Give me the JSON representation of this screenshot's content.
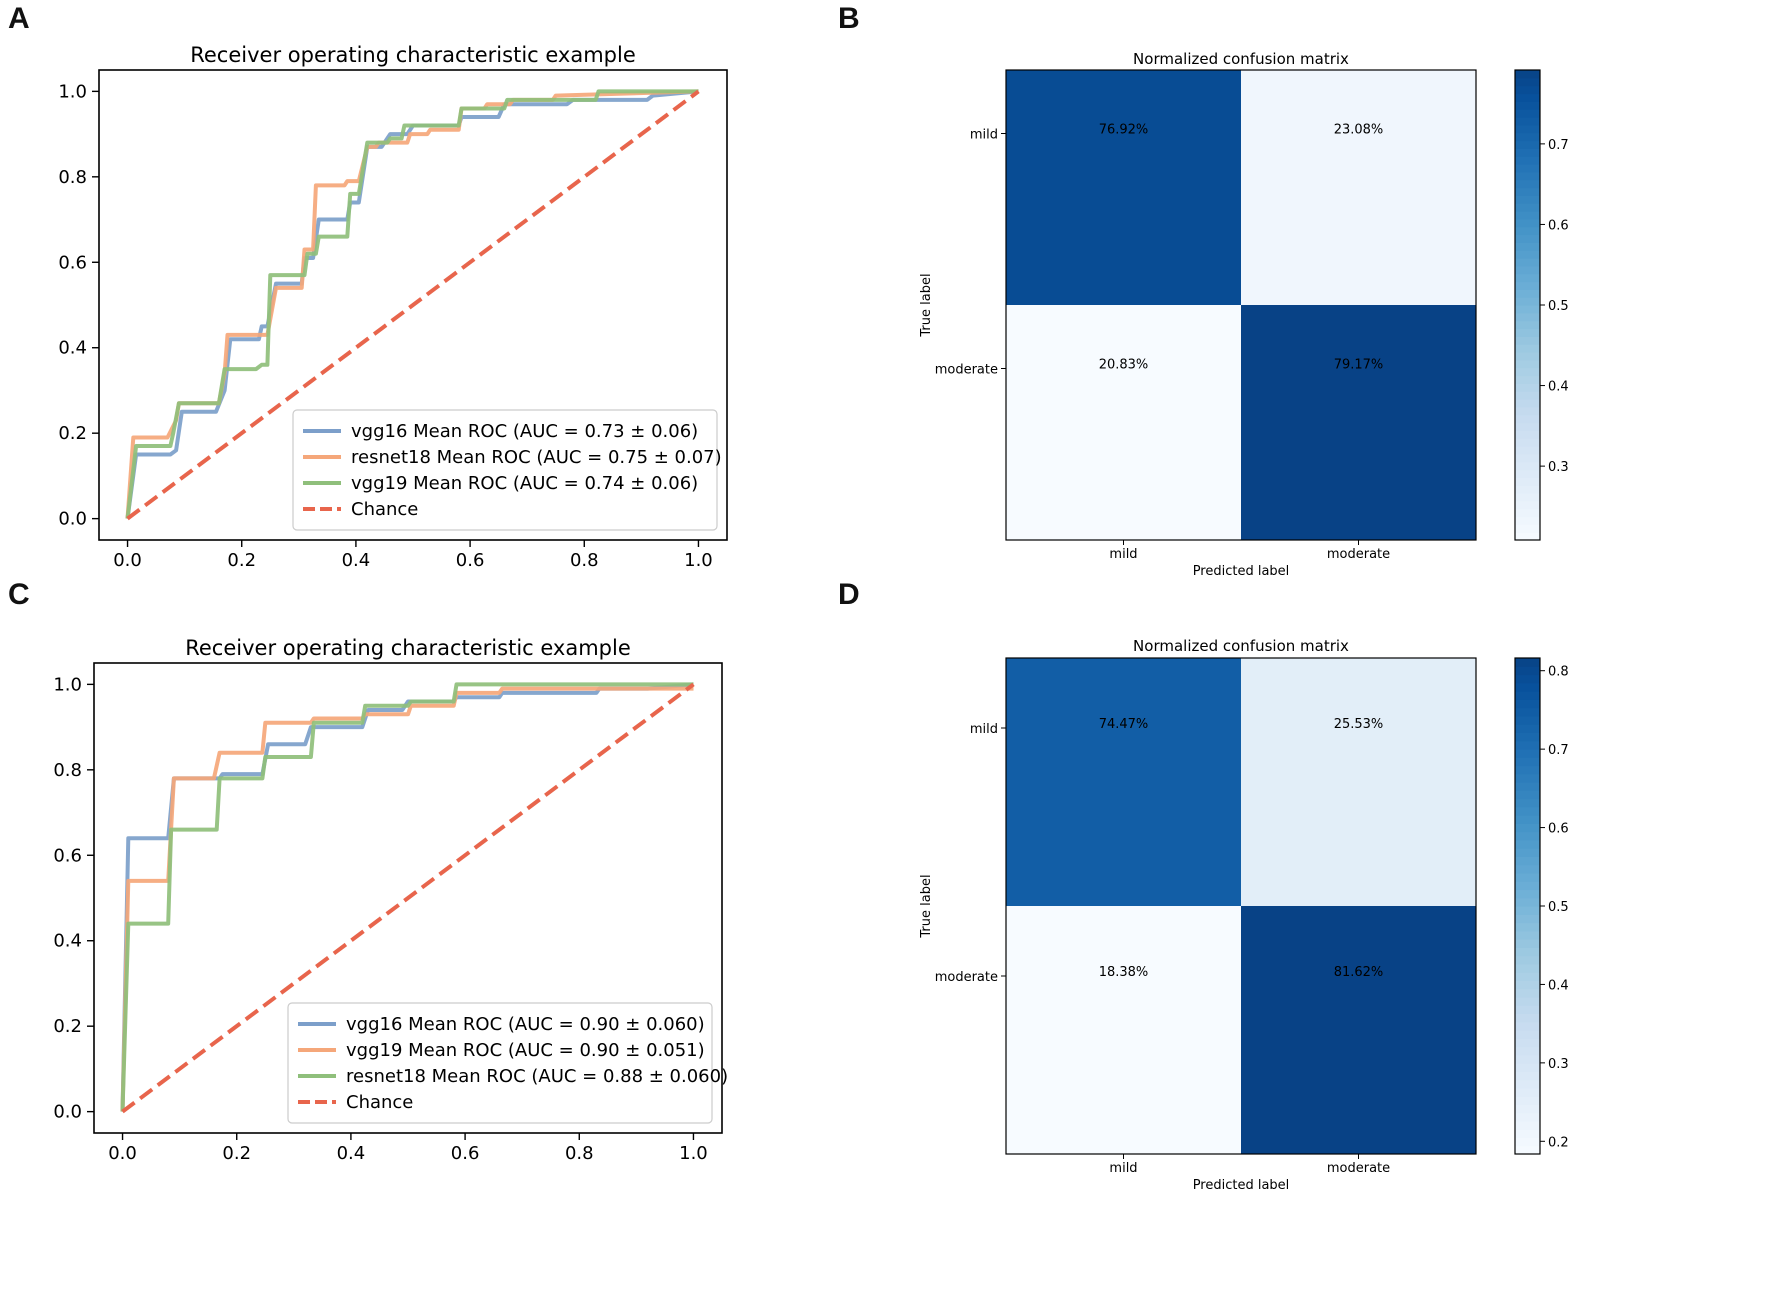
{
  "panel_labels": {
    "a": "A",
    "b": "B",
    "c": "C",
    "d": "D"
  },
  "chart_data": [
    {
      "panel": "A",
      "type": "line",
      "title": "Receiver operating characteristic example",
      "xlabel": "",
      "ylabel": "",
      "xlim": [
        -0.05,
        1.05
      ],
      "ylim": [
        -0.05,
        1.05
      ],
      "xticks": [
        0.0,
        0.2,
        0.4,
        0.6,
        0.8,
        1.0
      ],
      "yticks": [
        0.0,
        0.2,
        0.4,
        0.6,
        0.8,
        1.0
      ],
      "xtick_labels": [
        "0.0",
        "0.2",
        "0.4",
        "0.6",
        "0.8",
        "1.0"
      ],
      "ytick_labels": [
        "0.0",
        "0.2",
        "0.4",
        "0.6",
        "0.8",
        "1.0"
      ],
      "legend_position": "lower-right",
      "series": [
        {
          "name": "vgg16 Mean ROC (AUC = 0.73 ± 0.06)",
          "color": "#7c9fca",
          "dash": "solid",
          "points": [
            [
              0,
              0
            ],
            [
              0.015,
              0.15
            ],
            [
              0.075,
              0.15
            ],
            [
              0.085,
              0.16
            ],
            [
              0.095,
              0.25
            ],
            [
              0.155,
              0.25
            ],
            [
              0.17,
              0.3
            ],
            [
              0.18,
              0.42
            ],
            [
              0.23,
              0.42
            ],
            [
              0.235,
              0.45
            ],
            [
              0.245,
              0.45
            ],
            [
              0.26,
              0.55
            ],
            [
              0.305,
              0.55
            ],
            [
              0.31,
              0.61
            ],
            [
              0.325,
              0.61
            ],
            [
              0.335,
              0.7
            ],
            [
              0.385,
              0.7
            ],
            [
              0.39,
              0.74
            ],
            [
              0.405,
              0.74
            ],
            [
              0.42,
              0.87
            ],
            [
              0.445,
              0.87
            ],
            [
              0.46,
              0.9
            ],
            [
              0.49,
              0.9
            ],
            [
              0.5,
              0.92
            ],
            [
              0.58,
              0.92
            ],
            [
              0.585,
              0.94
            ],
            [
              0.65,
              0.94
            ],
            [
              0.66,
              0.97
            ],
            [
              0.77,
              0.97
            ],
            [
              0.78,
              0.98
            ],
            [
              0.91,
              0.98
            ],
            [
              0.92,
              0.99
            ],
            [
              1.0,
              1.0
            ]
          ]
        },
        {
          "name": "resnet18 Mean ROC (AUC = 0.75 ± 0.07)",
          "color": "#f5a77a",
          "dash": "solid",
          "points": [
            [
              0,
              0
            ],
            [
              0.01,
              0.19
            ],
            [
              0.07,
              0.19
            ],
            [
              0.085,
              0.23
            ],
            [
              0.09,
              0.27
            ],
            [
              0.16,
              0.27
            ],
            [
              0.17,
              0.34
            ],
            [
              0.175,
              0.43
            ],
            [
              0.245,
              0.43
            ],
            [
              0.26,
              0.54
            ],
            [
              0.305,
              0.54
            ],
            [
              0.31,
              0.63
            ],
            [
              0.325,
              0.63
            ],
            [
              0.33,
              0.78
            ],
            [
              0.38,
              0.78
            ],
            [
              0.385,
              0.79
            ],
            [
              0.405,
              0.79
            ],
            [
              0.42,
              0.87
            ],
            [
              0.435,
              0.87
            ],
            [
              0.44,
              0.88
            ],
            [
              0.49,
              0.88
            ],
            [
              0.495,
              0.9
            ],
            [
              0.525,
              0.9
            ],
            [
              0.53,
              0.91
            ],
            [
              0.58,
              0.91
            ],
            [
              0.585,
              0.96
            ],
            [
              0.625,
              0.96
            ],
            [
              0.63,
              0.97
            ],
            [
              0.67,
              0.97
            ],
            [
              0.675,
              0.98
            ],
            [
              0.745,
              0.98
            ],
            [
              0.75,
              0.99
            ],
            [
              1.0,
              1.0
            ]
          ]
        },
        {
          "name": "vgg19 Mean ROC (AUC = 0.74 ± 0.06)",
          "color": "#8fbf7b",
          "dash": "solid",
          "points": [
            [
              0,
              0
            ],
            [
              0.015,
              0.17
            ],
            [
              0.075,
              0.17
            ],
            [
              0.08,
              0.2
            ],
            [
              0.09,
              0.27
            ],
            [
              0.16,
              0.27
            ],
            [
              0.17,
              0.35
            ],
            [
              0.225,
              0.35
            ],
            [
              0.235,
              0.36
            ],
            [
              0.245,
              0.36
            ],
            [
              0.25,
              0.57
            ],
            [
              0.31,
              0.57
            ],
            [
              0.315,
              0.62
            ],
            [
              0.33,
              0.62
            ],
            [
              0.335,
              0.66
            ],
            [
              0.385,
              0.66
            ],
            [
              0.39,
              0.76
            ],
            [
              0.405,
              0.76
            ],
            [
              0.42,
              0.88
            ],
            [
              0.455,
              0.88
            ],
            [
              0.46,
              0.89
            ],
            [
              0.48,
              0.89
            ],
            [
              0.485,
              0.92
            ],
            [
              0.58,
              0.92
            ],
            [
              0.585,
              0.96
            ],
            [
              0.66,
              0.96
            ],
            [
              0.665,
              0.98
            ],
            [
              0.82,
              0.98
            ],
            [
              0.825,
              1.0
            ],
            [
              1.0,
              1.0
            ]
          ]
        },
        {
          "name": "Chance",
          "color": "#e8654c",
          "dash": "dashed",
          "points": [
            [
              0,
              0
            ],
            [
              1,
              1
            ]
          ]
        }
      ]
    },
    {
      "panel": "B",
      "type": "heatmap",
      "title": "Normalized confusion matrix",
      "xlabel": "Predicted label",
      "ylabel": "True label",
      "x_categories": [
        "mild",
        "moderate"
      ],
      "y_categories": [
        "mild",
        "moderate"
      ],
      "values": [
        [
          0.7692,
          0.2308
        ],
        [
          0.2083,
          0.7917
        ]
      ],
      "cell_labels": [
        [
          "76.92%",
          "23.08%"
        ],
        [
          "20.83%",
          "79.17%"
        ]
      ],
      "colorbar": {
        "min": 0.2083,
        "max": 0.7917,
        "ticks": [
          0.3,
          0.4,
          0.5,
          0.6,
          0.7
        ],
        "tick_labels": [
          "0.3",
          "0.4",
          "0.5",
          "0.6",
          "0.7"
        ]
      }
    },
    {
      "panel": "C",
      "type": "line",
      "title": "Receiver operating characteristic example",
      "xlabel": "",
      "ylabel": "",
      "xlim": [
        -0.05,
        1.05
      ],
      "ylim": [
        -0.05,
        1.05
      ],
      "xticks": [
        0.0,
        0.2,
        0.4,
        0.6,
        0.8,
        1.0
      ],
      "yticks": [
        0.0,
        0.2,
        0.4,
        0.6,
        0.8,
        1.0
      ],
      "xtick_labels": [
        "0.0",
        "0.2",
        "0.4",
        "0.6",
        "0.8",
        "1.0"
      ],
      "ytick_labels": [
        "0.0",
        "0.2",
        "0.4",
        "0.6",
        "0.8",
        "1.0"
      ],
      "legend_position": "lower-right",
      "series": [
        {
          "name": "vgg16 Mean ROC (AUC = 0.90 ± 0.060)",
          "color": "#7c9fca",
          "dash": "solid",
          "points": [
            [
              0,
              0
            ],
            [
              0.01,
              0.64
            ],
            [
              0.08,
              0.64
            ],
            [
              0.09,
              0.78
            ],
            [
              0.17,
              0.78
            ],
            [
              0.175,
              0.79
            ],
            [
              0.245,
              0.79
            ],
            [
              0.255,
              0.86
            ],
            [
              0.32,
              0.86
            ],
            [
              0.33,
              0.9
            ],
            [
              0.42,
              0.9
            ],
            [
              0.43,
              0.94
            ],
            [
              0.49,
              0.94
            ],
            [
              0.5,
              0.96
            ],
            [
              0.58,
              0.96
            ],
            [
              0.585,
              0.97
            ],
            [
              0.66,
              0.97
            ],
            [
              0.665,
              0.98
            ],
            [
              0.83,
              0.98
            ],
            [
              0.835,
              0.99
            ],
            [
              0.92,
              0.99
            ],
            [
              1.0,
              1.0
            ]
          ]
        },
        {
          "name": "vgg19 Mean ROC (AUC = 0.90 ± 0.051)",
          "color": "#f5a77a",
          "dash": "solid",
          "points": [
            [
              0,
              0
            ],
            [
              0.01,
              0.54
            ],
            [
              0.08,
              0.54
            ],
            [
              0.09,
              0.78
            ],
            [
              0.16,
              0.78
            ],
            [
              0.17,
              0.84
            ],
            [
              0.245,
              0.84
            ],
            [
              0.25,
              0.91
            ],
            [
              0.33,
              0.91
            ],
            [
              0.335,
              0.92
            ],
            [
              0.42,
              0.92
            ],
            [
              0.425,
              0.93
            ],
            [
              0.5,
              0.93
            ],
            [
              0.505,
              0.95
            ],
            [
              0.58,
              0.95
            ],
            [
              0.585,
              0.98
            ],
            [
              0.66,
              0.98
            ],
            [
              0.665,
              0.99
            ],
            [
              1.0,
              0.99
            ]
          ]
        },
        {
          "name": "resnet18 Mean ROC (AUC = 0.88 ± 0.060)",
          "color": "#8fbf7b",
          "dash": "solid",
          "points": [
            [
              0,
              0
            ],
            [
              0.01,
              0.44
            ],
            [
              0.08,
              0.44
            ],
            [
              0.085,
              0.66
            ],
            [
              0.165,
              0.66
            ],
            [
              0.17,
              0.78
            ],
            [
              0.245,
              0.78
            ],
            [
              0.25,
              0.83
            ],
            [
              0.33,
              0.83
            ],
            [
              0.335,
              0.91
            ],
            [
              0.42,
              0.91
            ],
            [
              0.425,
              0.95
            ],
            [
              0.5,
              0.95
            ],
            [
              0.505,
              0.96
            ],
            [
              0.58,
              0.96
            ],
            [
              0.585,
              1.0
            ],
            [
              1.0,
              1.0
            ]
          ]
        },
        {
          "name": "Chance",
          "color": "#e8654c",
          "dash": "dashed",
          "points": [
            [
              0,
              0
            ],
            [
              1,
              1
            ]
          ]
        }
      ]
    },
    {
      "panel": "D",
      "type": "heatmap",
      "title": "Normalized confusion matrix",
      "xlabel": "Predicted label",
      "ylabel": "True label",
      "x_categories": [
        "mild",
        "moderate"
      ],
      "y_categories": [
        "mild",
        "moderate"
      ],
      "values": [
        [
          0.7447,
          0.2553
        ],
        [
          0.1838,
          0.8162
        ]
      ],
      "cell_labels": [
        [
          "74.47%",
          "25.53%"
        ],
        [
          "18.38%",
          "81.62%"
        ]
      ],
      "colorbar": {
        "min": 0.1838,
        "max": 0.8162,
        "ticks": [
          0.2,
          0.3,
          0.4,
          0.5,
          0.6,
          0.7,
          0.8
        ],
        "tick_labels": [
          "0.2",
          "0.3",
          "0.4",
          "0.5",
          "0.6",
          "0.7",
          "0.8"
        ]
      }
    }
  ]
}
